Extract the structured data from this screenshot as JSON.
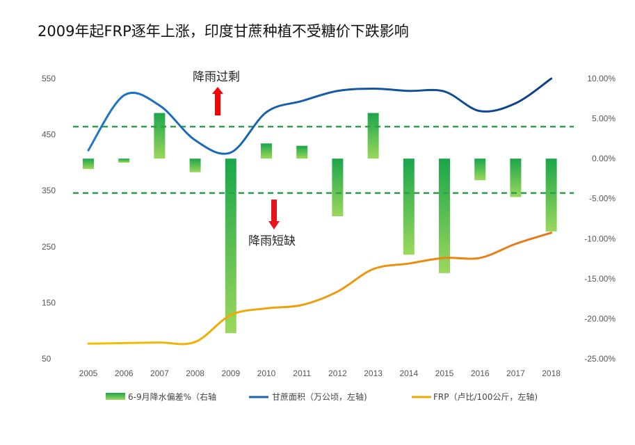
{
  "chart_data": {
    "type": "bar+line",
    "title": "2009年起FRP逐年上涨，印度甘蔗种植不受糖价下跌影响",
    "categories": [
      "2005",
      "2006",
      "2007",
      "2008",
      "2009",
      "2010",
      "2011",
      "2012",
      "2013",
      "2014",
      "2015",
      "2016",
      "2017",
      "2018"
    ],
    "left_axis": {
      "ticks": [
        "550",
        "450",
        "350",
        "250",
        "150",
        "50"
      ],
      "ylim": [
        50,
        550
      ]
    },
    "right_axis": {
      "ticks": [
        "10.00%",
        "5.00%",
        "0.00%",
        "-5.00%",
        "-10.00%",
        "-15.00%",
        "-20.00%",
        "-25.00%"
      ],
      "ylim": [
        -25,
        10
      ]
    },
    "series": [
      {
        "name": "6-9月降水偏差%（右轴",
        "kind": "bar",
        "axis": "right",
        "color": "#3cb54a",
        "values": [
          -1.3,
          -0.5,
          5.7,
          -1.7,
          -21.8,
          1.9,
          1.6,
          -7.2,
          5.7,
          -12.0,
          -14.3,
          -2.7,
          -4.8,
          -9.1
        ]
      },
      {
        "name": "甘蔗面积（万公顷，左轴)",
        "kind": "line",
        "axis": "left",
        "color": "#1864ab",
        "values": [
          422,
          520,
          502,
          440,
          418,
          490,
          510,
          528,
          532,
          528,
          527,
          492,
          506,
          550
        ]
      },
      {
        "name": "FRP（卢比/100公斤，左轴)",
        "kind": "line",
        "axis": "left",
        "color": "#f2a800",
        "values": [
          77,
          78,
          79,
          80,
          128,
          140,
          146,
          170,
          210,
          220,
          230,
          230,
          255,
          275
        ]
      }
    ],
    "threshold_lines": {
      "values": [
        4.0,
        -4.3
      ],
      "color": "#2aa14a"
    },
    "annotations": {
      "surplus": "降雨过剩",
      "deficit": "降雨短缺",
      "up_color": "#ff0000",
      "down_color": "#e8141b"
    },
    "legend_position": "bottom"
  }
}
